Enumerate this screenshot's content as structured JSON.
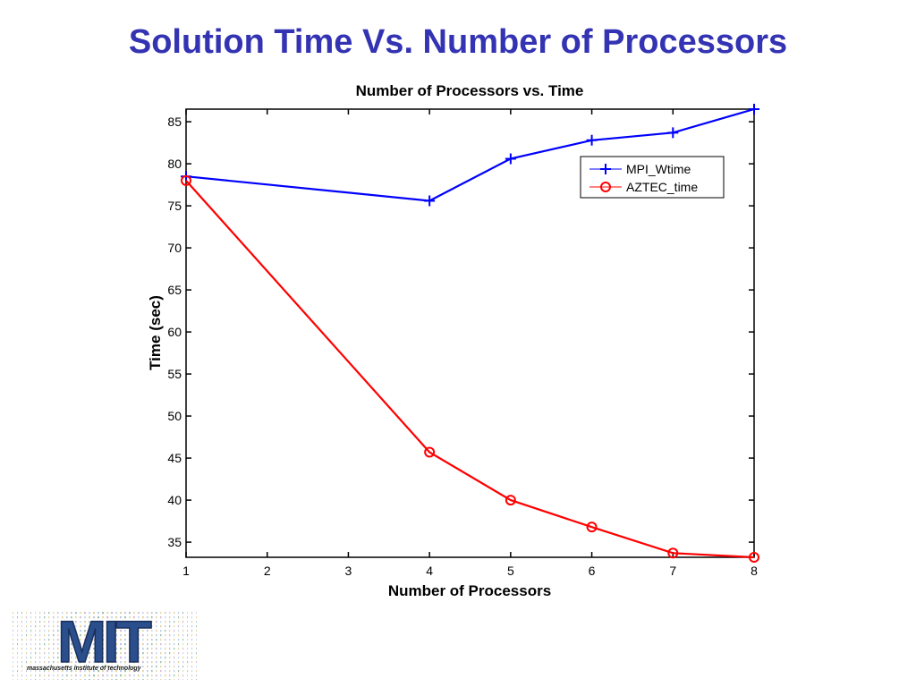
{
  "slide": {
    "title": "Solution Time Vs. Number of Processors"
  },
  "logo": {
    "wordmark": "MIT",
    "caption": "massachusetts institute of technology"
  },
  "chart_data": {
    "type": "line",
    "title": "Number of Processors vs. Time",
    "xlabel": "Number of Processors",
    "ylabel": "Time (sec)",
    "xlim": [
      1,
      8
    ],
    "ylim": [
      33.2,
      86.5
    ],
    "xticks": [
      1,
      2,
      3,
      4,
      5,
      6,
      7,
      8
    ],
    "yticks": [
      35,
      40,
      45,
      50,
      55,
      60,
      65,
      70,
      75,
      80,
      85
    ],
    "x": [
      1,
      4,
      5,
      6,
      7,
      8
    ],
    "grid": false,
    "legend_position": "top-right",
    "series": [
      {
        "name": "MPI_Wtime",
        "color": "#0000ff",
        "marker": "plus",
        "values": [
          78.5,
          75.6,
          80.6,
          82.8,
          83.7,
          86.5
        ]
      },
      {
        "name": "AZTEC_time",
        "color": "#ff0000",
        "marker": "circle",
        "values": [
          78.0,
          45.7,
          40.0,
          36.8,
          33.7,
          33.2
        ]
      }
    ]
  }
}
